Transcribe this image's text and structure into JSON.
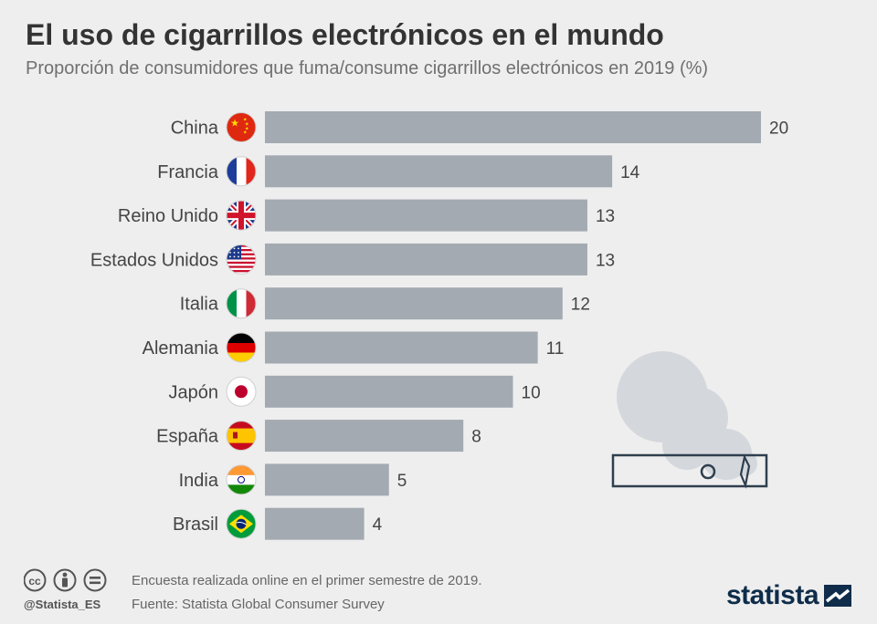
{
  "title": "El uso de cigarrillos electrónicos en el mundo",
  "subtitle": "Proporción de consumidores que fuma/consume cigarrillos electrónicos en 2019 (%)",
  "chart_data": {
    "type": "bar",
    "orientation": "horizontal",
    "categories": [
      "China",
      "Francia",
      "Reino Unido",
      "Estados Unidos",
      "Italia",
      "Alemania",
      "Japón",
      "España",
      "India",
      "Brasil"
    ],
    "values": [
      20,
      14,
      13,
      13,
      12,
      11,
      10,
      8,
      5,
      4
    ],
    "xlim": [
      0,
      20
    ],
    "grid": false,
    "bar_color": "#a3aab1",
    "flag_icons": [
      "china-flag-icon",
      "france-flag-icon",
      "uk-flag-icon",
      "usa-flag-icon",
      "italy-flag-icon",
      "germany-flag-icon",
      "japan-flag-icon",
      "spain-flag-icon",
      "india-flag-icon",
      "brazil-flag-icon"
    ]
  },
  "footer": {
    "handle": "@Statista_ES",
    "note": "Encuesta realizada online en el primer semestre de 2019.",
    "source": "Fuente: Statista Global Consumer Survey",
    "brand": "statista",
    "license_icons": [
      "cc-icon",
      "attribution-icon",
      "no-derivatives-icon"
    ]
  },
  "colors": {
    "background": "#eeeeee",
    "title": "#333333",
    "bar": "#a3aab1",
    "brand": "#0f2d4a",
    "smoke": "#d4d8dc",
    "device_outline": "#2f3f4f"
  }
}
